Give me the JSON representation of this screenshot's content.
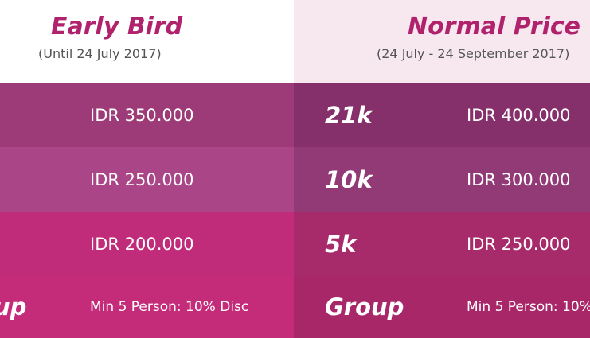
{
  "header": {
    "early_bird_title": "Early Bird",
    "early_bird_period": "(Until 24 July 2017)",
    "normal_title": "Normal Price",
    "normal_period": "(24 July - 24 September 2017)"
  },
  "rows": [
    {
      "category": "21k",
      "early_price": "IDR 350.000",
      "normal_price": "IDR 400.000"
    },
    {
      "category": "10k",
      "early_price": "IDR 250.000",
      "normal_price": "IDR 300.000"
    },
    {
      "category": "5k",
      "early_price": "IDR 200.000",
      "normal_price": "IDR 250.000"
    },
    {
      "category": "Group",
      "category_clipped": "up",
      "early_price": "Min 5 Person: 10% Disc",
      "normal_price": "Min 5 Person: 10%"
    }
  ],
  "colors": {
    "title": "#b1226c",
    "row1_left": "#9c3b78",
    "row1_right": "#86306b",
    "row2_left": "#aa4687",
    "row2_right": "#923a76",
    "row3_left": "#c02c79",
    "row3_right": "#a72a6b",
    "row4_left": "#c42b79",
    "row4_right": "#a82769"
  }
}
